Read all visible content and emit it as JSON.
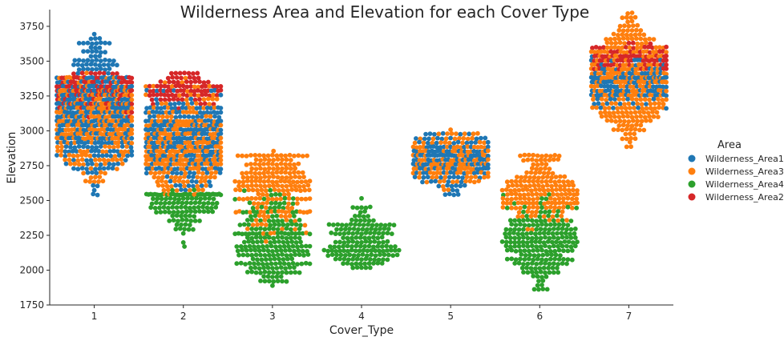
{
  "chart_data": {
    "type": "scatter",
    "subtype": "swarm",
    "title": "Wilderness Area and Elevation for each Cover Type",
    "xlabel": "Cover_Type",
    "ylabel": "Elevation",
    "categories": [
      "1",
      "2",
      "3",
      "4",
      "5",
      "6",
      "7"
    ],
    "ylim": [
      1750,
      3870
    ],
    "yticks": [
      1750,
      2000,
      2250,
      2500,
      2750,
      3000,
      3250,
      3500,
      3750
    ],
    "grid": false,
    "legend": {
      "title": "Area",
      "placement": "right"
    },
    "series": [
      {
        "name": "Wilderness_Area1",
        "color": "#1f77b4",
        "distribution": [
          {
            "category": "1",
            "min": 2530,
            "max": 3680,
            "median": 3150
          },
          {
            "category": "2",
            "min": 2560,
            "max": 3320,
            "median": 2950
          },
          {
            "category": "5",
            "min": 2490,
            "max": 2980,
            "median": 2780
          },
          {
            "category": "7",
            "min": 3150,
            "max": 3560,
            "median": 3330
          }
        ]
      },
      {
        "name": "Wilderness_Area3",
        "color": "#ff7f0e",
        "distribution": [
          {
            "category": "1",
            "min": 2580,
            "max": 3420,
            "median": 3050
          },
          {
            "category": "2",
            "min": 2520,
            "max": 3390,
            "median": 2900
          },
          {
            "category": "3",
            "min": 2200,
            "max": 2840,
            "median": 2600
          },
          {
            "category": "5",
            "min": 2560,
            "max": 3000,
            "median": 2790
          },
          {
            "category": "6",
            "min": 2300,
            "max": 2880,
            "median": 2580
          },
          {
            "category": "7",
            "min": 2880,
            "max": 3850,
            "median": 3350
          }
        ]
      },
      {
        "name": "Wilderness_Area4",
        "color": "#2ca02c",
        "distribution": [
          {
            "category": "2",
            "min": 2170,
            "max": 2560,
            "median": 2480
          },
          {
            "category": "3",
            "min": 1900,
            "max": 2620,
            "median": 2200
          },
          {
            "category": "4",
            "min": 2000,
            "max": 2530,
            "median": 2200
          },
          {
            "category": "6",
            "min": 1860,
            "max": 2550,
            "median": 2200
          }
        ]
      },
      {
        "name": "Wilderness_Area2",
        "color": "#d62728",
        "distribution": [
          {
            "category": "1",
            "min": 3100,
            "max": 3420,
            "median": 3300
          },
          {
            "category": "2",
            "min": 3150,
            "max": 3420,
            "median": 3300
          },
          {
            "category": "7",
            "min": 3400,
            "max": 3640,
            "median": 3530
          }
        ]
      }
    ]
  }
}
